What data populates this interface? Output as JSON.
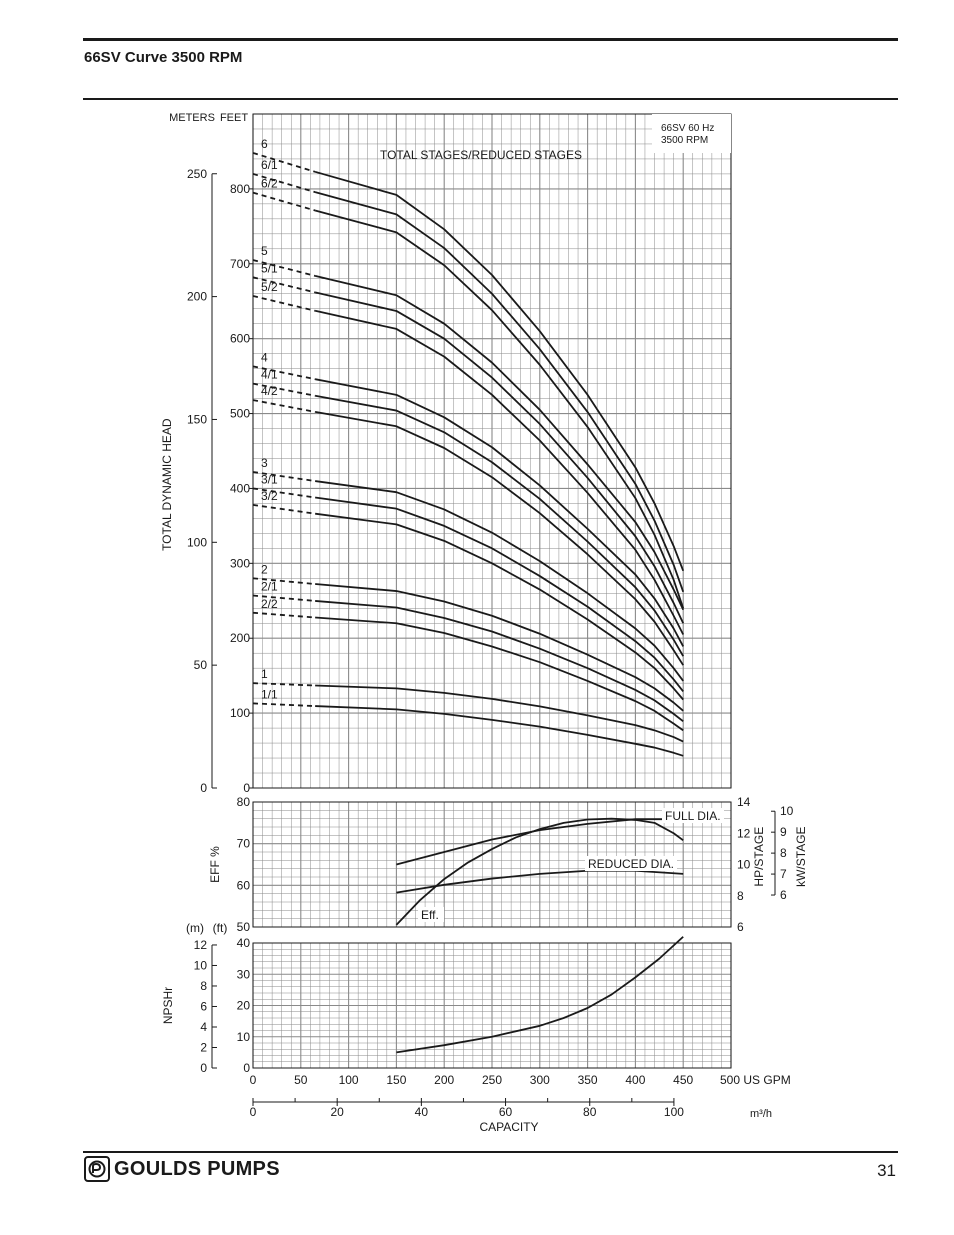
{
  "page": {
    "title": "66SV Curve 3500 RPM",
    "page_number": "31",
    "brand": "GOULDS PUMPS"
  },
  "colors": {
    "ink": "#1a1a1a",
    "grid": "#8a8a8a",
    "paper": "#ffffff"
  },
  "chart_data": [
    {
      "id": "head",
      "type": "line",
      "title": "TOTAL STAGES/REDUCED STAGES",
      "info": [
        "66SV  60 Hz",
        "3500 RPM"
      ],
      "ylabel": "TOTAL DYNAMIC HEAD",
      "y_unit_left": "METERS",
      "y_unit_right": "FEET",
      "ylim_ft": [
        0,
        900
      ],
      "meters_ticks": [
        0,
        50,
        100,
        150,
        200,
        250
      ],
      "feet_ticks": [
        0,
        100,
        200,
        300,
        400,
        500,
        600,
        700,
        800
      ],
      "x_gpm": [
        150,
        200,
        250,
        300,
        350,
        400,
        420,
        440,
        450
      ],
      "dashed_from_gpm": 0,
      "dashed_to_gpm": 65,
      "series": [
        {
          "name": "6",
          "shutoff": 848,
          "values": [
            792,
            746,
            685,
            610,
            525,
            428,
            380,
            323,
            290
          ]
        },
        {
          "name": "6/1",
          "shutoff": 820,
          "values": [
            766,
            721,
            660,
            586,
            502,
            406,
            357,
            298,
            262
          ]
        },
        {
          "name": "6/2",
          "shutoff": 795,
          "values": [
            742,
            698,
            638,
            565,
            482,
            387,
            338,
            278,
            240
          ]
        },
        {
          "name": "5",
          "shutoff": 705,
          "values": [
            658,
            620,
            568,
            505,
            432,
            355,
            315,
            265,
            238
          ]
        },
        {
          "name": "5/1",
          "shutoff": 682,
          "values": [
            637,
            600,
            548,
            486,
            414,
            336,
            296,
            247,
            220
          ]
        },
        {
          "name": "5/2",
          "shutoff": 657,
          "values": [
            613,
            576,
            525,
            464,
            394,
            318,
            278,
            230,
            205
          ]
        },
        {
          "name": "4",
          "shutoff": 563,
          "values": [
            525,
            495,
            455,
            404,
            346,
            285,
            253,
            213,
            189
          ]
        },
        {
          "name": "4/1",
          "shutoff": 540,
          "values": [
            504,
            475,
            435,
            386,
            329,
            268,
            237,
            198,
            176
          ]
        },
        {
          "name": "4/2",
          "shutoff": 518,
          "values": [
            483,
            454,
            415,
            367,
            312,
            252,
            222,
            184,
            164
          ]
        },
        {
          "name": "3",
          "shutoff": 422,
          "values": [
            395,
            372,
            341,
            303,
            260,
            213,
            190,
            160,
            143
          ]
        },
        {
          "name": "3/1",
          "shutoff": 400,
          "values": [
            373,
            350,
            320,
            283,
            242,
            196,
            174,
            145,
            129
          ]
        },
        {
          "name": "3/2",
          "shutoff": 378,
          "values": [
            352,
            330,
            300,
            265,
            225,
            181,
            160,
            133,
            118
          ]
        },
        {
          "name": "2",
          "shutoff": 280,
          "values": [
            263,
            249,
            230,
            206,
            178,
            148,
            133,
            114,
            103
          ]
        },
        {
          "name": "2/1",
          "shutoff": 257,
          "values": [
            241,
            227,
            209,
            186,
            160,
            131,
            117,
            99,
            89
          ]
        },
        {
          "name": "2/2",
          "shutoff": 234,
          "values": [
            220,
            207,
            189,
            168,
            143,
            116,
            103,
            86,
            77
          ]
        },
        {
          "name": "1",
          "shutoff": 140,
          "values": [
            133,
            127,
            119,
            109,
            97,
            84,
            77,
            68,
            62
          ]
        },
        {
          "name": "1/1",
          "shutoff": 113,
          "values": [
            105,
            99,
            91,
            82,
            71,
            59,
            54,
            47,
            43
          ]
        }
      ]
    },
    {
      "id": "eff-power",
      "type": "line",
      "ylabel_left": "EFF %",
      "ylabel_right_hp": "HP/STAGE",
      "ylabel_right_kw": "kW/STAGE",
      "eff_ticks": [
        50,
        60,
        70,
        80
      ],
      "hp_ticks": [
        6,
        8,
        10,
        12,
        14
      ],
      "kw_ticks": [
        6,
        7,
        8,
        9,
        10
      ],
      "ylim_eff": [
        50,
        80
      ],
      "ylim_hp": [
        6,
        14
      ],
      "series": [
        {
          "name": "Eff.",
          "axis": "eff",
          "x": [
            150,
            175,
            200,
            225,
            250,
            275,
            300,
            325,
            350,
            375,
            400,
            420,
            440,
            450
          ],
          "values": [
            50.5,
            56.5,
            61.5,
            65.5,
            68.7,
            71.5,
            73.5,
            75,
            75.8,
            76,
            75.7,
            75,
            72.5,
            70.8
          ]
        },
        {
          "name": "FULL DIA.",
          "axis": "hp",
          "x": [
            150,
            200,
            250,
            300,
            350,
            400,
            450
          ],
          "values": [
            10.0,
            10.8,
            11.6,
            12.2,
            12.6,
            12.9,
            12.9
          ]
        },
        {
          "name": "REDUCED DIA.",
          "axis": "hp",
          "x": [
            150,
            200,
            250,
            300,
            350,
            400,
            450
          ],
          "values": [
            8.2,
            8.7,
            9.1,
            9.4,
            9.6,
            9.6,
            9.4
          ]
        }
      ],
      "labels": {
        "full": "FULL DIA.",
        "reduced": "REDUCED DIA.",
        "eff": "Eff."
      }
    },
    {
      "id": "npshr",
      "type": "line",
      "ylabel": "NPSHr",
      "unit_m": "(m)",
      "unit_ft": "(ft)",
      "m_ticks": [
        0,
        2,
        4,
        6,
        8,
        10,
        12
      ],
      "ft_ticks": [
        0,
        10,
        20,
        30,
        40
      ],
      "ylim_ft": [
        0,
        40
      ],
      "series": [
        {
          "name": "NPSHr",
          "x": [
            150,
            200,
            250,
            300,
            325,
            350,
            375,
            400,
            425,
            450
          ],
          "values": [
            5,
            7.3,
            10,
            13.5,
            16,
            19.2,
            23.5,
            29,
            35,
            42
          ]
        }
      ]
    }
  ],
  "capacity_axis": {
    "gpm_ticks": [
      0,
      50,
      100,
      150,
      200,
      250,
      300,
      350,
      400,
      450,
      500
    ],
    "gpm_unit": "US GPM",
    "m3h_ticks": [
      0,
      20,
      40,
      60,
      80,
      100
    ],
    "m3h_unit": "m³/h",
    "xlabel": "CAPACITY",
    "xlim_gpm": [
      0,
      500
    ]
  }
}
